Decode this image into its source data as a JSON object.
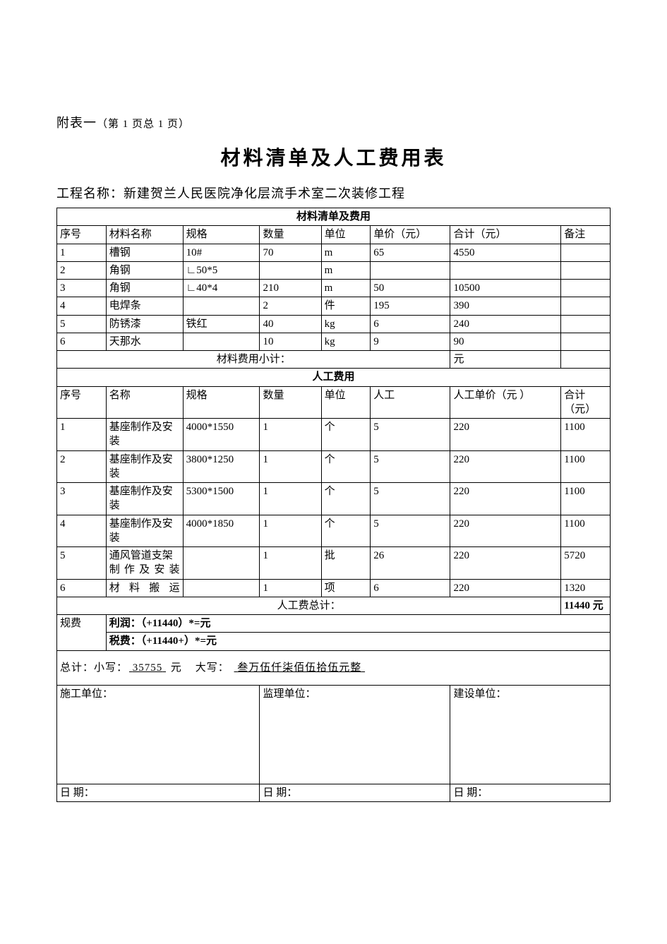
{
  "prefix": {
    "main": "附表一",
    "sub": "（第 1 页总 1 页）"
  },
  "doc_title": "材料清单及人工费用表",
  "project": {
    "label": "工程名称：",
    "name": "新建贺兰人民医院净化层流手术室二次装修工程"
  },
  "mat_section_title": "材料清单及费用",
  "mat_headers": {
    "seq": "序号",
    "name": "材料名称",
    "spec": "规格",
    "qty": "数量",
    "unit": "单位",
    "price": "单价（元）",
    "sum": "合计（元）",
    "note": "备注"
  },
  "materials": [
    {
      "seq": "1",
      "name": "槽钢",
      "spec": "10#",
      "qty": "70",
      "unit": "m",
      "price": "65",
      "sum": "4550",
      "note": ""
    },
    {
      "seq": "2",
      "name": "角钢",
      "spec": "∟50*5",
      "qty": "",
      "unit": "m",
      "price": "",
      "sum": "",
      "note": ""
    },
    {
      "seq": "3",
      "name": "角钢",
      "spec": "∟40*4",
      "qty": "210",
      "unit": "m",
      "price": "50",
      "sum": "10500",
      "note": ""
    },
    {
      "seq": "4",
      "name": "电焊条",
      "spec": "",
      "qty": "2",
      "unit": "件",
      "price": "195",
      "sum": "390",
      "note": ""
    },
    {
      "seq": "5",
      "name": "防锈漆",
      "spec": "铁红",
      "qty": "40",
      "unit": "kg",
      "price": "6",
      "sum": "240",
      "note": ""
    },
    {
      "seq": "6",
      "name": "天那水",
      "spec": "",
      "qty": "10",
      "unit": "kg",
      "price": "9",
      "sum": "90",
      "note": ""
    }
  ],
  "mat_subtotal": {
    "label": "材料费用小计：",
    "value": "元"
  },
  "lab_section_title": "人工费用",
  "lab_headers": {
    "seq": "序号",
    "name": "名称",
    "spec": "规格",
    "qty": "数量",
    "unit": "单位",
    "labor": "人工",
    "price": "人工单价（元 ）",
    "sum": "合计（元）"
  },
  "labors": [
    {
      "seq": "1",
      "name": "基座制作及安装",
      "spec": "4000*1550",
      "qty": "1",
      "unit": "个",
      "labor": "5",
      "price": "220",
      "sum": "1100"
    },
    {
      "seq": "2",
      "name": "基座制作及安装",
      "spec": "3800*1250",
      "qty": "1",
      "unit": "个",
      "labor": "5",
      "price": "220",
      "sum": "1100"
    },
    {
      "seq": "3",
      "name": "基座制作及安装",
      "spec": "5300*1500",
      "qty": "1",
      "unit": "个",
      "labor": "5",
      "price": "220",
      "sum": "1100"
    },
    {
      "seq": "4",
      "name": "基座制作及安装",
      "spec": "4000*1850",
      "qty": "1",
      "unit": "个",
      "labor": "5",
      "price": "220",
      "sum": "1100"
    },
    {
      "seq": "5",
      "name": "通风管道支架制作及安装",
      "spec": "",
      "qty": "1",
      "unit": "批",
      "labor": "26",
      "price": "220",
      "sum": "5720"
    },
    {
      "seq": "6",
      "name": "材料搬运",
      "spec": "",
      "qty": "1",
      "unit": "项",
      "labor": "6",
      "price": "220",
      "sum": "1320"
    }
  ],
  "lab_subtotal": {
    "label": "人工费总计：",
    "value": "11440 元"
  },
  "fees": {
    "label": "规费",
    "profit": "利润：（+11440）*=元",
    "tax": "税费：（+11440+）*=元"
  },
  "grand_total": {
    "prefix": "总计：小写：",
    "amount_num": "35755",
    "yuan": "元",
    "big_label": "大写：",
    "amount_cn": "叁万伍仟柒佰伍拾伍元整"
  },
  "signatures": {
    "construction": "施工单位：",
    "supervision": "监理单位：",
    "owner": "建设单位：",
    "date": "日 期："
  },
  "style": {
    "page_bg": "#ffffff",
    "text_color": "#000000",
    "border_color": "#000000",
    "title_fontsize": 28,
    "body_fontsize": 15
  }
}
